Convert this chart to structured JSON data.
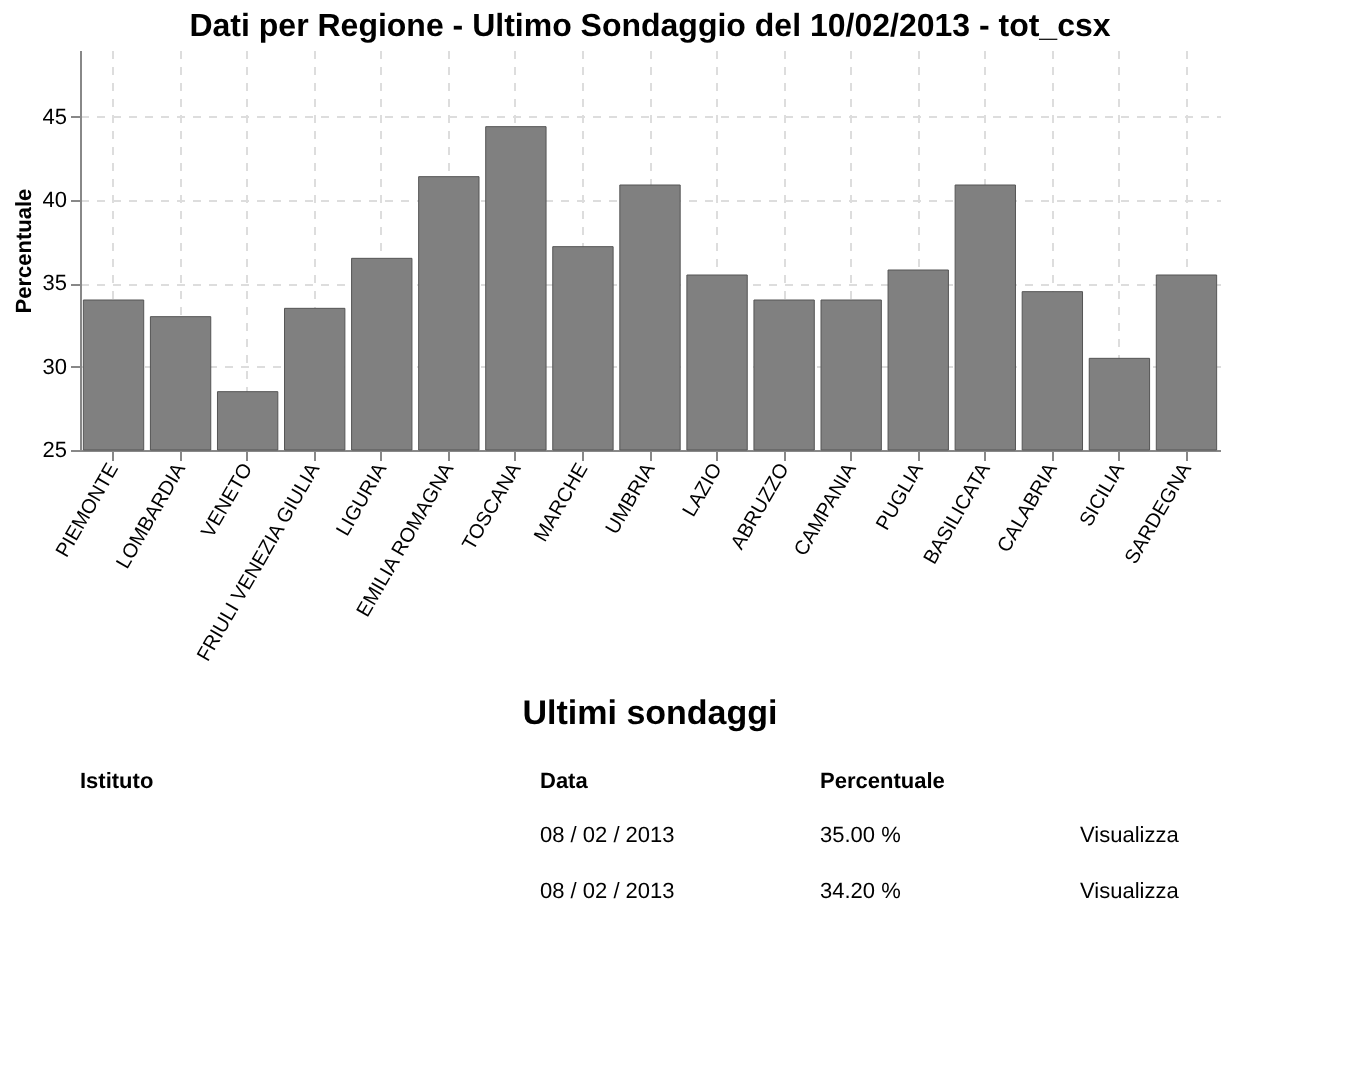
{
  "chart_data": {
    "type": "bar",
    "title": "Dati per Regione - Ultimo Sondaggio del 10/02/2013 - tot_csx",
    "ylabel": "Percentuale",
    "categories": [
      "PIEMONTE",
      "LOMBARDIA",
      "VENETO",
      "FRIULI VENEZIA GIULIA",
      "LIGURIA",
      "EMILIA ROMAGNA",
      "TOSCANA",
      "MARCHE",
      "UMBRIA",
      "LAZIO",
      "ABRUZZO",
      "CAMPANIA",
      "PUGLIA",
      "BASILICATA",
      "CALABRIA",
      "SICILIA",
      "SARDEGNA"
    ],
    "values": [
      34.0,
      33.0,
      28.5,
      33.5,
      36.5,
      41.4,
      44.4,
      37.2,
      40.9,
      35.5,
      34.0,
      34.0,
      35.8,
      40.9,
      34.5,
      30.5,
      35.5
    ],
    "color": "#808080",
    "ylim": [
      25,
      49
    ],
    "yticks": [
      25,
      30,
      35,
      40,
      45
    ],
    "grid": true,
    "annotations": [
      "Ultimi sondaggi",
      "Istituto",
      "Data",
      "Percentuale",
      "08 / 02 / 2013",
      "35.00 %",
      "Visualizza",
      "08 / 02 / 2013",
      "34.20 %",
      "Visualizza"
    ]
  }
}
